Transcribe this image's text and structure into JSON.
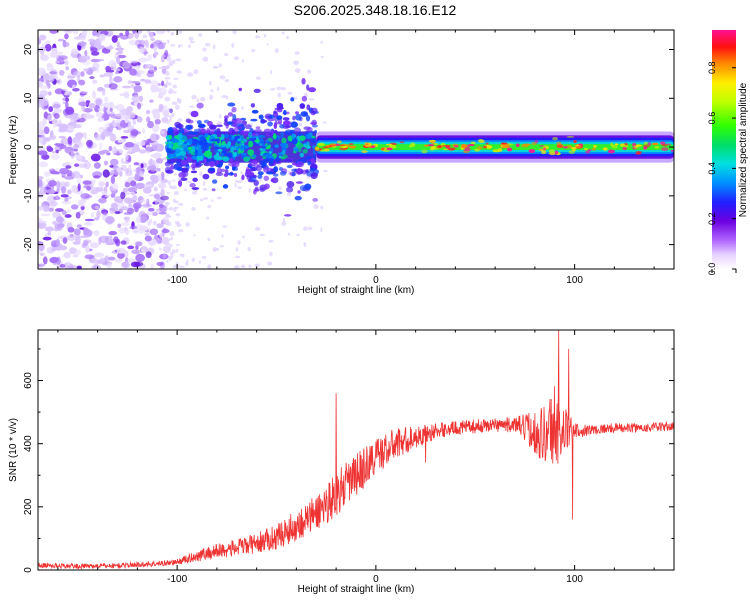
{
  "figure": {
    "title": "S206.2025.348.18.16.E12"
  },
  "chart_data": [
    {
      "type": "heatmap",
      "name": "spectrogram",
      "title": "S206.2025.348.18.16.E12",
      "xlabel": "Height of straight line (km)",
      "ylabel": "Frequency (Hz)",
      "xlim": [
        -170,
        150
      ],
      "ylim": [
        -25,
        24
      ],
      "xticks": [
        -100,
        0,
        100
      ],
      "xtick_labels": [
        "-100",
        "0",
        "100"
      ],
      "yticks": [
        -20,
        -10,
        0,
        10,
        20
      ],
      "ytick_labels": [
        "-20",
        "-10",
        "0",
        "10",
        "20"
      ],
      "colorbar": {
        "label": "Normalized spectral amplitude",
        "range": [
          0,
          0.95
        ],
        "ticks": [
          0,
          0.2,
          0.4,
          0.6,
          0.8
        ],
        "tick_labels": [
          "0.0",
          "0.2",
          "0.4",
          "0.6",
          "0.8"
        ]
      },
      "regions": [
        {
          "x_range": [
            -170,
            -105
          ],
          "f_range": [
            -25,
            24
          ],
          "amplitude": 0.12,
          "description": "broadband noise"
        },
        {
          "x_range": [
            -105,
            -30
          ],
          "f_range": [
            -5,
            5
          ],
          "amplitude": 0.3,
          "description": "emerging signal"
        },
        {
          "x_range": [
            -30,
            150
          ],
          "f_range": [
            -1.5,
            1.5
          ],
          "amplitude": 0.75,
          "description": "narrow carrier line"
        }
      ]
    },
    {
      "type": "line",
      "name": "snr",
      "xlabel": "Height of straight line (km)",
      "ylabel": "SNR (10 * v/v)",
      "xlim": [
        -170,
        150
      ],
      "ylim": [
        0,
        760
      ],
      "xticks": [
        -100,
        0,
        100
      ],
      "xtick_labels": [
        "-100",
        "0",
        "100"
      ],
      "yticks": [
        0,
        200,
        400,
        600
      ],
      "ytick_labels": [
        "0",
        "200",
        "400",
        "600"
      ],
      "color": "#ee3333",
      "series": [
        {
          "name": "SNR",
          "x": [
            -170,
            -150,
            -130,
            -110,
            -100,
            -90,
            -80,
            -70,
            -60,
            -50,
            -40,
            -35,
            -30,
            -25,
            -20,
            -15,
            -10,
            -5,
            0,
            5,
            10,
            15,
            20,
            25,
            30,
            40,
            50,
            60,
            70,
            75,
            80,
            85,
            90,
            95,
            100,
            110,
            120,
            130,
            140,
            150
          ],
          "values": [
            15,
            12,
            14,
            20,
            25,
            45,
            60,
            70,
            85,
            105,
            140,
            160,
            180,
            210,
            240,
            270,
            300,
            330,
            360,
            380,
            400,
            410,
            420,
            430,
            440,
            450,
            455,
            460,
            460,
            450,
            440,
            430,
            460,
            440,
            440,
            445,
            450,
            450,
            452,
            455
          ],
          "noise": [
            8,
            8,
            8,
            9,
            10,
            18,
            25,
            28,
            32,
            40,
            50,
            55,
            60,
            65,
            70,
            70,
            70,
            65,
            60,
            55,
            50,
            45,
            35,
            30,
            25,
            22,
            22,
            22,
            25,
            45,
            70,
            100,
            140,
            80,
            25,
            15,
            15,
            15,
            15,
            15
          ]
        }
      ],
      "spikes": [
        {
          "x": -20,
          "value": 560
        },
        {
          "x": 25,
          "value": 340
        },
        {
          "x": 92,
          "value": 760
        },
        {
          "x": 97,
          "value": 700
        },
        {
          "x": 99,
          "value": 160
        }
      ]
    }
  ]
}
